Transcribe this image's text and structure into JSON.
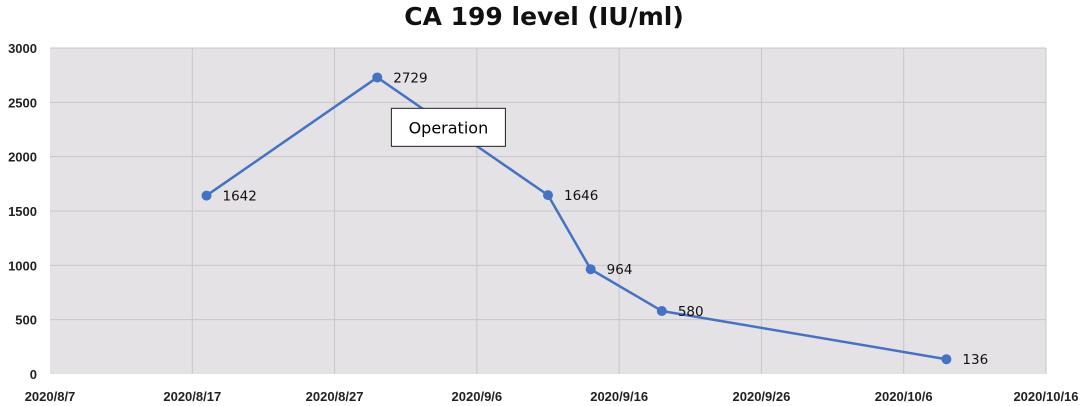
{
  "chart_data": {
    "type": "line",
    "title": "CA 199 level (IU/ml)",
    "xlabel": "",
    "ylabel": "",
    "x_axis_type": "date",
    "xlim": [
      "2020-08-07",
      "2020-10-16"
    ],
    "ylim": [
      0,
      3000
    ],
    "x_tick_labels": [
      "2020/8/7",
      "2020/8/17",
      "2020/8/27",
      "2020/9/6",
      "2020/9/16",
      "2020/9/26",
      "2020/10/6",
      "2020/10/16"
    ],
    "y_tick_labels": [
      "0",
      "500",
      "1000",
      "1500",
      "2000",
      "2500",
      "3000"
    ],
    "grid": true,
    "legend": "none",
    "series": [
      {
        "color": "#4472C4",
        "points": [
          {
            "x": "2020-08-18",
            "y": 1642,
            "label": "1642"
          },
          {
            "x": "2020-08-30",
            "y": 2729,
            "label": "2729"
          },
          {
            "x": "2020-09-11",
            "y": 1646,
            "label": "1646"
          },
          {
            "x": "2020-09-14",
            "y": 964,
            "label": "964"
          },
          {
            "x": "2020-09-19",
            "y": 580,
            "label": "580"
          },
          {
            "x": "2020-10-09",
            "y": 136,
            "label": "136"
          }
        ]
      }
    ],
    "annotations": [
      {
        "text": "Operation",
        "x": "2020-09-04",
        "y": 2270
      }
    ]
  }
}
